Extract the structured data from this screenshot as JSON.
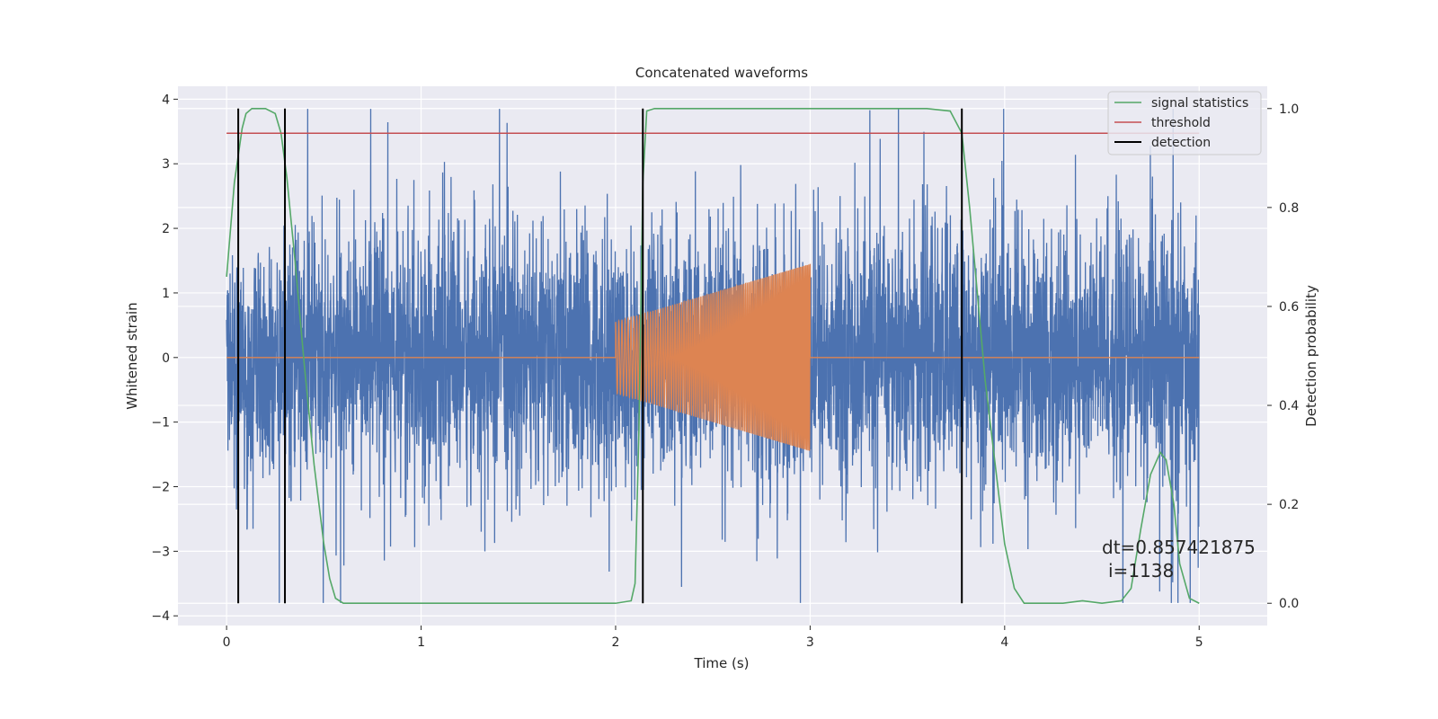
{
  "chart_data": {
    "type": "line",
    "title": "Concatenated waveforms",
    "xlabel": "Time (s)",
    "ylabel": "Whitened strain",
    "y2label": "Detection probability",
    "xlim": [
      -0.25,
      5.35
    ],
    "ylim": [
      -4.15,
      4.2
    ],
    "y2lim": [
      -0.045,
      1.045
    ],
    "xticks": [
      0,
      1,
      2,
      3,
      4,
      5
    ],
    "yticks": [
      -4,
      -3,
      -2,
      -1,
      0,
      1,
      2,
      3,
      4
    ],
    "y2ticks": [
      0.0,
      0.2,
      0.4,
      0.6,
      0.8,
      1.0
    ],
    "xtick_labels": [
      "0",
      "1",
      "2",
      "3",
      "4",
      "5"
    ],
    "ytick_labels": [
      "−4",
      "−3",
      "−2",
      "−1",
      "0",
      "1",
      "2",
      "3",
      "4"
    ],
    "y2tick_labels": [
      "0.0",
      "0.2",
      "0.4",
      "0.6",
      "0.8",
      "1.0"
    ],
    "grid": true,
    "legend_position": "top-right",
    "colors": {
      "strain": "#4c72b0",
      "injected": "#dd8452",
      "signal_statistics": "#55a868",
      "threshold": "#c44e52",
      "detection": "#000000",
      "axes_bg": "#eaeaf2"
    },
    "series": [
      {
        "name": "",
        "description": "whitened strain noise",
        "axis": "left",
        "x_range": [
          0,
          5
        ],
        "y_extent": [
          -3.8,
          3.85
        ]
      },
      {
        "name": "",
        "description": "injected chirp",
        "axis": "left",
        "x_range": [
          0,
          5
        ],
        "start": 2.0,
        "end": 3.0,
        "amplitude_start": 0.55,
        "amplitude_end": 1.45
      },
      {
        "name": "signal statistics",
        "axis": "right",
        "x": [
          0.0,
          0.04,
          0.08,
          0.1,
          0.13,
          0.2,
          0.25,
          0.28,
          0.31,
          0.35,
          0.4,
          0.45,
          0.5,
          0.53,
          0.56,
          0.6,
          1.0,
          1.5,
          2.0,
          2.08,
          2.1,
          2.12,
          2.14,
          2.16,
          2.2,
          3.0,
          3.6,
          3.72,
          3.78,
          3.82,
          3.9,
          4.0,
          4.05,
          4.1,
          4.3,
          4.4,
          4.5,
          4.6,
          4.65,
          4.7,
          4.75,
          4.8,
          4.83,
          4.87,
          4.9,
          4.95,
          5.0
        ],
        "y": [
          0.66,
          0.85,
          0.96,
          0.99,
          1.0,
          1.0,
          0.99,
          0.95,
          0.86,
          0.7,
          0.48,
          0.28,
          0.12,
          0.05,
          0.01,
          0.0,
          0.0,
          0.0,
          0.0,
          0.005,
          0.04,
          0.35,
          0.85,
          0.995,
          1.0,
          1.0,
          1.0,
          0.995,
          0.95,
          0.8,
          0.45,
          0.12,
          0.03,
          0.0,
          0.0,
          0.005,
          0.0,
          0.005,
          0.03,
          0.15,
          0.26,
          0.305,
          0.29,
          0.2,
          0.08,
          0.01,
          0.0
        ]
      },
      {
        "name": "threshold",
        "axis": "right",
        "x": [
          0,
          5
        ],
        "y": [
          0.95,
          0.95
        ]
      },
      {
        "name": "detection",
        "axis": "right",
        "type": "vlines",
        "x": [
          0.06,
          0.3,
          2.14,
          3.78
        ],
        "y_range": [
          0.0,
          1.0
        ]
      }
    ],
    "annotation": {
      "line1": "dt=0.857421875",
      "line2": "i=1138",
      "x": 4.51,
      "y": -3.0
    }
  }
}
